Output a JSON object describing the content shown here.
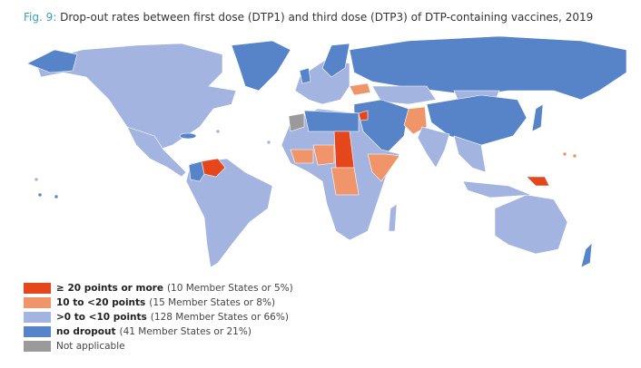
{
  "title": {
    "label": "Fig. 9:",
    "text": "Drop-out rates between first dose (DTP1) and third dose (DTP3) of DTP-containing vaccines, 2019"
  },
  "legend": [
    {
      "label": "≥ 20 points or more",
      "note": "(10 Member States or 5%)",
      "color": "#e5461c"
    },
    {
      "label": "10 to <20 points",
      "note": "(15 Member States or 8%)",
      "color": "#f0956a"
    },
    {
      "label": ">0 to <10 points",
      "note": "(128 Member States or 66%)",
      "color": "#a4b4e0"
    },
    {
      "label": "no dropout",
      "note": "(41 Member States or 21%)",
      "color": "#5784c9"
    },
    {
      "label": "Not applicable",
      "color": "#9a9a9a"
    }
  ]
}
